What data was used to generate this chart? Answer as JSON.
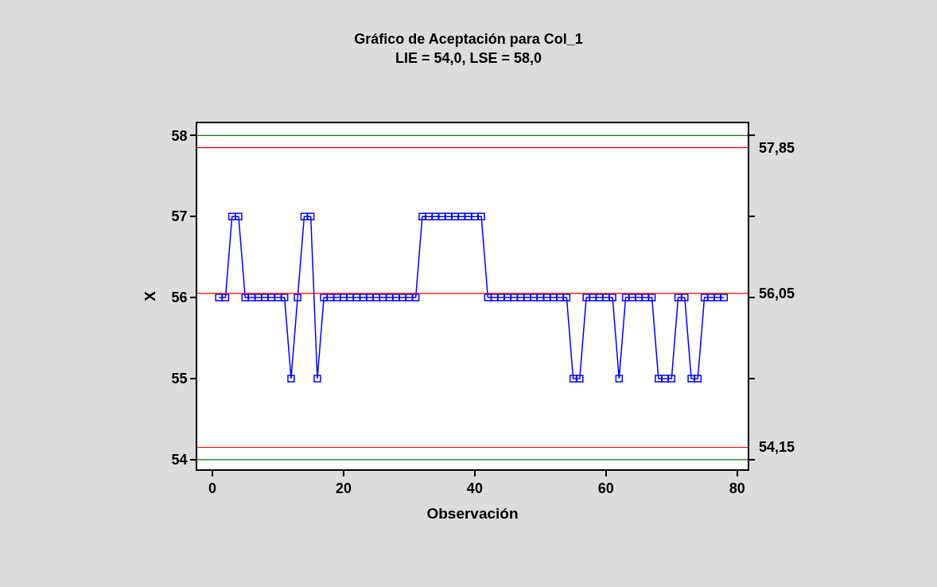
{
  "chart_data": {
    "type": "line",
    "title": "Gráfico de Aceptación para Col_1",
    "subtitle": "LIE = 54,0, LSE = 58,0",
    "xlabel": "Observación",
    "ylabel": "X",
    "x": [
      1,
      2,
      3,
      4,
      5,
      6,
      7,
      8,
      9,
      10,
      11,
      12,
      13,
      14,
      15,
      16,
      17,
      18,
      19,
      20,
      21,
      22,
      23,
      24,
      25,
      26,
      27,
      28,
      29,
      30,
      31,
      32,
      33,
      34,
      35,
      36,
      37,
      38,
      39,
      40,
      41,
      42,
      43,
      44,
      45,
      46,
      47,
      48,
      49,
      50,
      51,
      52,
      53,
      54,
      55,
      56,
      57,
      58,
      59,
      60,
      61,
      62,
      63,
      64,
      65,
      66,
      67,
      68,
      69,
      70,
      71,
      72,
      73,
      74,
      75,
      76,
      77,
      78
    ],
    "series": [
      {
        "color": "#0000ff",
        "values": [
          56,
          56,
          57,
          57,
          56,
          56,
          56,
          56,
          56,
          56,
          56,
          55,
          56,
          57,
          57,
          55,
          56,
          56,
          56,
          56,
          56,
          56,
          56,
          56,
          56,
          56,
          56,
          56,
          56,
          56,
          56,
          57,
          57,
          57,
          57,
          57,
          57,
          57,
          57,
          57,
          57,
          56,
          56,
          56,
          56,
          56,
          56,
          56,
          56,
          56,
          56,
          56,
          56,
          56,
          55,
          55,
          56,
          56,
          56,
          56,
          56,
          55,
          56,
          56,
          56,
          56,
          56,
          55,
          55,
          55,
          56,
          56,
          55,
          55,
          56,
          56,
          56,
          56
        ]
      }
    ],
    "marker": "square",
    "line_style": "solid",
    "legend": false,
    "xlim": [
      -2.3,
      81.6
    ],
    "ylim": [
      53.88,
      58.15
    ],
    "xticks": [
      0,
      20,
      40,
      60,
      80
    ],
    "yticks": [
      54,
      55,
      56,
      57,
      58
    ],
    "ref_lines": [
      {
        "axis": "y",
        "value": 58,
        "color": "#008000"
      },
      {
        "axis": "y",
        "value": 57.85,
        "label": "57,85",
        "color": "#ff0000"
      },
      {
        "axis": "y",
        "value": 56.05,
        "label": "56,05",
        "color": "#ff0000"
      },
      {
        "axis": "y",
        "value": 54.15,
        "label": "54,15",
        "color": "#ff0000"
      },
      {
        "axis": "y",
        "value": 54,
        "color": "#008000"
      }
    ]
  }
}
